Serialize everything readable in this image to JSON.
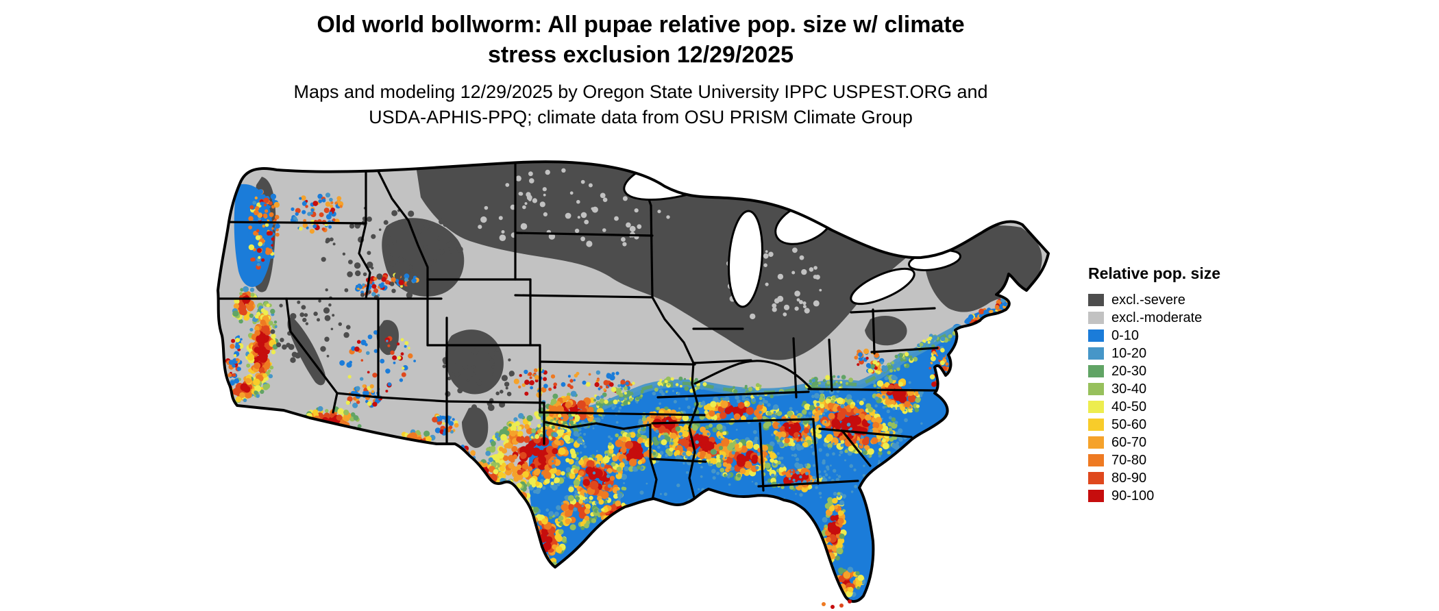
{
  "page": {
    "background": "#ffffff"
  },
  "title": {
    "line1": "Old world bollworm: All pupae relative pop. size w/ climate",
    "line2": "stress exclusion 12/29/2025"
  },
  "subtitle": {
    "line1": "Maps and modeling 12/29/2025 by Oregon State University IPPC USPEST.ORG and",
    "line2": "USDA-APHIS-PPQ; climate data from OSU PRISM Climate Group"
  },
  "legend": {
    "title": "Relative pop. size",
    "items": [
      {
        "label": "excl.-severe",
        "color": "#4d4d4d"
      },
      {
        "label": "excl.-moderate",
        "color": "#c2c2c2"
      },
      {
        "label": "0-10",
        "color": "#1b7cd9"
      },
      {
        "label": "10-20",
        "color": "#4696c8"
      },
      {
        "label": "20-30",
        "color": "#61a465"
      },
      {
        "label": "30-40",
        "color": "#97c05c"
      },
      {
        "label": "40-50",
        "color": "#eded4f"
      },
      {
        "label": "50-60",
        "color": "#f8cc2a"
      },
      {
        "label": "60-70",
        "color": "#f5a22b"
      },
      {
        "label": "70-80",
        "color": "#ee7a22"
      },
      {
        "label": "80-90",
        "color": "#df481d"
      },
      {
        "label": "90-100",
        "color": "#c60d0d"
      }
    ]
  }
}
